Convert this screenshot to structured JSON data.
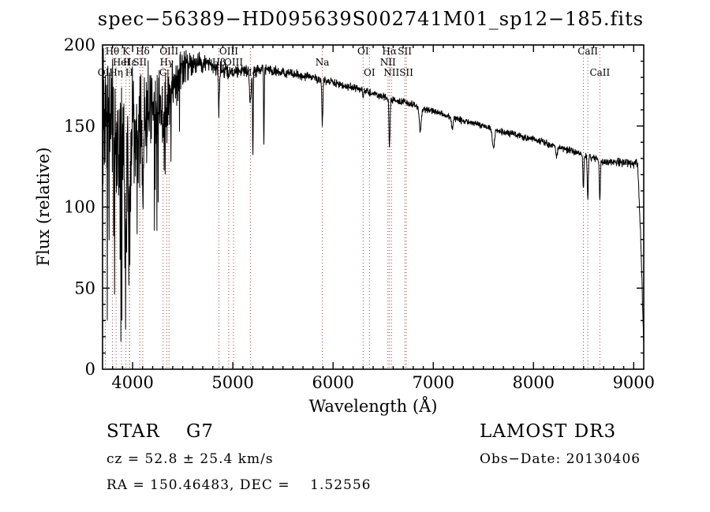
{
  "chart_data": {
    "type": "line",
    "title": "spec−56389−HD095639S002741M01_sp12−185.fits",
    "xlabel": "Wavelength (Å)",
    "ylabel": "Flux (relative)",
    "xlim": [
      3700,
      9100
    ],
    "ylim": [
      0,
      200
    ],
    "x_ticks": [
      4000,
      5000,
      6000,
      7000,
      8000,
      9000
    ],
    "y_ticks": [
      0,
      50,
      100,
      150,
      200
    ],
    "x_minor_step": 100,
    "y_minor_step": 10,
    "trace_color": "#000000",
    "line_marker_color": "#a04545",
    "envelope": [
      [
        3700,
        145
      ],
      [
        3740,
        155
      ],
      [
        3780,
        150
      ],
      [
        3820,
        148
      ],
      [
        3860,
        140
      ],
      [
        3900,
        135
      ],
      [
        3950,
        125
      ],
      [
        4000,
        150
      ],
      [
        4050,
        148
      ],
      [
        4100,
        145
      ],
      [
        4150,
        160
      ],
      [
        4200,
        165
      ],
      [
        4250,
        162
      ],
      [
        4300,
        168
      ],
      [
        4350,
        170
      ],
      [
        4400,
        178
      ],
      [
        4450,
        182
      ],
      [
        4500,
        186
      ],
      [
        4550,
        188
      ],
      [
        4600,
        189
      ],
      [
        4650,
        190
      ],
      [
        4700,
        189
      ],
      [
        4750,
        188
      ],
      [
        4800,
        187
      ],
      [
        4850,
        186
      ],
      [
        4900,
        184
      ],
      [
        4950,
        183
      ],
      [
        5000,
        183
      ],
      [
        5050,
        184
      ],
      [
        5100,
        185
      ],
      [
        5150,
        184
      ],
      [
        5200,
        184
      ],
      [
        5250,
        185
      ],
      [
        5300,
        186
      ],
      [
        5350,
        185
      ],
      [
        5400,
        184
      ],
      [
        5450,
        184
      ],
      [
        5500,
        183
      ],
      [
        5600,
        182
      ],
      [
        5700,
        181
      ],
      [
        5800,
        180
      ],
      [
        5900,
        178
      ],
      [
        6000,
        177
      ],
      [
        6100,
        175
      ],
      [
        6200,
        174
      ],
      [
        6300,
        172
      ],
      [
        6400,
        170
      ],
      [
        6500,
        168
      ],
      [
        6600,
        166
      ],
      [
        6700,
        165
      ],
      [
        6800,
        163
      ],
      [
        6900,
        160
      ],
      [
        7000,
        159
      ],
      [
        7100,
        157
      ],
      [
        7200,
        155
      ],
      [
        7300,
        153
      ],
      [
        7400,
        152
      ],
      [
        7500,
        150
      ],
      [
        7600,
        148
      ],
      [
        7700,
        146
      ],
      [
        7800,
        145
      ],
      [
        7900,
        143
      ],
      [
        8000,
        142
      ],
      [
        8100,
        140
      ],
      [
        8200,
        138
      ],
      [
        8300,
        136
      ],
      [
        8400,
        134
      ],
      [
        8500,
        132
      ],
      [
        8600,
        130
      ],
      [
        8700,
        128
      ],
      [
        8800,
        128
      ],
      [
        8900,
        127
      ],
      [
        9000,
        127
      ],
      [
        9040,
        126
      ],
      [
        9070,
        80
      ],
      [
        9100,
        15
      ]
    ],
    "noise_profile": [
      [
        3700,
        55
      ],
      [
        3850,
        52
      ],
      [
        4000,
        46
      ],
      [
        4150,
        36
      ],
      [
        4300,
        30
      ],
      [
        4450,
        18
      ],
      [
        4600,
        9
      ],
      [
        4800,
        7
      ],
      [
        5000,
        5
      ],
      [
        5500,
        4
      ],
      [
        6000,
        3
      ],
      [
        7000,
        2.5
      ],
      [
        8000,
        2.5
      ],
      [
        8800,
        3
      ],
      [
        9100,
        4
      ]
    ],
    "absorption_lines": [
      {
        "center": 3933,
        "depth": 45,
        "width": 7
      },
      {
        "center": 3968,
        "depth": 40,
        "width": 7
      },
      {
        "center": 4101,
        "depth": 35,
        "width": 6
      },
      {
        "center": 4304,
        "depth": 25,
        "width": 9
      },
      {
        "center": 4340,
        "depth": 30,
        "width": 6
      },
      {
        "center": 4861,
        "depth": 25,
        "width": 5
      },
      {
        "center": 5175,
        "depth": 18,
        "width": 9
      },
      {
        "center": 5200,
        "depth": 55,
        "width": 3
      },
      {
        "center": 5310,
        "depth": 50,
        "width": 3
      },
      {
        "center": 5893,
        "depth": 27,
        "width": 5
      },
      {
        "center": 6300,
        "depth": 6,
        "width": 4
      },
      {
        "center": 6563,
        "depth": 30,
        "width": 5
      },
      {
        "center": 6870,
        "depth": 14,
        "width": 9
      },
      {
        "center": 7190,
        "depth": 7,
        "width": 8
      },
      {
        "center": 7600,
        "depth": 12,
        "width": 10
      },
      {
        "center": 8230,
        "depth": 7,
        "width": 8
      },
      {
        "center": 8498,
        "depth": 20,
        "width": 5
      },
      {
        "center": 8542,
        "depth": 27,
        "width": 5
      },
      {
        "center": 8662,
        "depth": 25,
        "width": 5
      }
    ],
    "spectral_lines": [
      {
        "wl": 3727,
        "label": "OII",
        "row": 3
      },
      {
        "wl": 3798,
        "label": "Hθ",
        "row": 1
      },
      {
        "wl": 3835,
        "label": "Hη",
        "row": 3
      },
      {
        "wl": 3889,
        "label": "HeI",
        "row": 2
      },
      {
        "wl": 3933,
        "label": "K",
        "row": 1
      },
      {
        "wl": 3968,
        "label": "H",
        "row": 3
      },
      {
        "wl": 3970,
        "label": "Hε",
        "row": 2
      },
      {
        "wl": 4072,
        "label": "SII",
        "row": 2
      },
      {
        "wl": 4101,
        "label": "Hδ",
        "row": 1
      },
      {
        "wl": 4304,
        "label": "G",
        "row": 3
      },
      {
        "wl": 4340,
        "label": "Hγ",
        "row": 2
      },
      {
        "wl": 4363,
        "label": "OIII",
        "row": 1
      },
      {
        "wl": 4861,
        "label": "Hβ",
        "row": 2
      },
      {
        "wl": 4959,
        "label": "OIII",
        "row": 1
      },
      {
        "wl": 5007,
        "label": "OIII",
        "row": 2
      },
      {
        "wl": 5175,
        "label": "Mg",
        "row": 3
      },
      {
        "wl": 5893,
        "label": "Na",
        "row": 2
      },
      {
        "wl": 6300,
        "label": "OI",
        "row": 1
      },
      {
        "wl": 6363,
        "label": "OI",
        "row": 3
      },
      {
        "wl": 6548,
        "label": "NII",
        "row": 2
      },
      {
        "wl": 6563,
        "label": "Hα",
        "row": 1
      },
      {
        "wl": 6583,
        "label": "NII",
        "row": 3
      },
      {
        "wl": 6716,
        "label": "SII",
        "row": 1
      },
      {
        "wl": 6731,
        "label": "SII",
        "row": 3
      },
      {
        "wl": 8498,
        "label": "",
        "row": 2
      },
      {
        "wl": 8542,
        "label": "CaII",
        "row": 1
      },
      {
        "wl": 8662,
        "label": "CaII",
        "row": 3
      }
    ]
  },
  "footer": {
    "class_label": "STAR    G7",
    "survey": "LAMOST DR3",
    "cz": "cz = 52.8 ± 25.4 km/s",
    "obs_date": "Obs−Date: 20130406",
    "ra_dec": "RA = 150.46483, DEC =    1.52556"
  }
}
